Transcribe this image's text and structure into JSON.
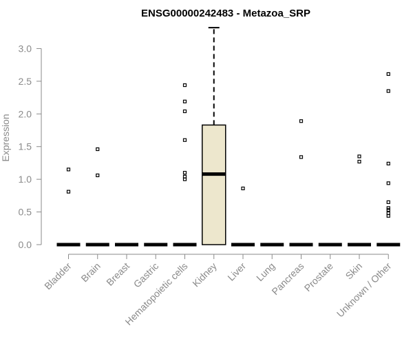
{
  "chart_data": {
    "type": "box",
    "title": "ENSG00000242483 - Metazoa_SRP",
    "xlabel": "",
    "ylabel": "Expression",
    "ylim": [
      0,
      3.3
    ],
    "yticks": [
      "0.0",
      "0.5",
      "1.0",
      "1.5",
      "2.0",
      "2.5",
      "3.0"
    ],
    "grid": false,
    "colors": {
      "box_fill": "#ede7cd",
      "box_stroke": "#000000",
      "axis": "#8a8a8a",
      "tick_text": "#8a8a8a"
    },
    "categories": [
      "Bladder",
      "Brain",
      "Breast",
      "Gastric",
      "Hematopoietic cells",
      "Kidney",
      "Liver",
      "Lung",
      "Pancreas",
      "Prostate",
      "Skin",
      "Unknown / Other"
    ],
    "boxes": [
      {
        "q1": 0,
        "median": 0,
        "q3": 0,
        "whisker_low": 0,
        "whisker_high": 0,
        "outliers": [
          0.81,
          1.15
        ]
      },
      {
        "q1": 0,
        "median": 0,
        "q3": 0,
        "whisker_low": 0,
        "whisker_high": 0,
        "outliers": [
          1.06,
          1.46
        ]
      },
      {
        "q1": 0,
        "median": 0,
        "q3": 0,
        "whisker_low": 0,
        "whisker_high": 0,
        "outliers": []
      },
      {
        "q1": 0,
        "median": 0,
        "q3": 0,
        "whisker_low": 0,
        "whisker_high": 0,
        "outliers": []
      },
      {
        "q1": 0,
        "median": 0,
        "q3": 0,
        "whisker_low": 0,
        "whisker_high": 0,
        "outliers": [
          1.0,
          1.04,
          1.1,
          1.6,
          2.04,
          2.19,
          2.44
        ]
      },
      {
        "q1": 0,
        "median": 1.08,
        "q3": 1.83,
        "whisker_low": 0,
        "whisker_high": 3.32,
        "outliers": []
      },
      {
        "q1": 0,
        "median": 0,
        "q3": 0,
        "whisker_low": 0,
        "whisker_high": 0,
        "outliers": [
          0.86
        ]
      },
      {
        "q1": 0,
        "median": 0,
        "q3": 0,
        "whisker_low": 0,
        "whisker_high": 0,
        "outliers": []
      },
      {
        "q1": 0,
        "median": 0,
        "q3": 0,
        "whisker_low": 0,
        "whisker_high": 0,
        "outliers": [
          1.34,
          1.89
        ]
      },
      {
        "q1": 0,
        "median": 0,
        "q3": 0,
        "whisker_low": 0,
        "whisker_high": 0,
        "outliers": []
      },
      {
        "q1": 0,
        "median": 0,
        "q3": 0,
        "whisker_low": 0,
        "whisker_high": 0,
        "outliers": [
          1.27,
          1.35
        ]
      },
      {
        "q1": 0,
        "median": 0,
        "q3": 0,
        "whisker_low": 0,
        "whisker_high": 0,
        "outliers": [
          0.44,
          0.48,
          0.53,
          0.56,
          0.65,
          0.94,
          1.24,
          2.35,
          2.61
        ]
      }
    ]
  }
}
